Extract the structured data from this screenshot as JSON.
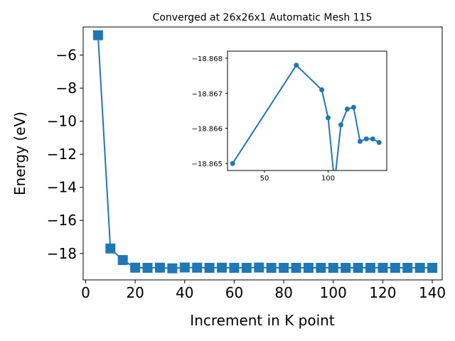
{
  "chart_data": [
    {
      "type": "line",
      "title": "Converged at 26x26x1 Automatic Mesh 115",
      "xlabel": "Increment in K point",
      "ylabel": "Energy (eV)",
      "xlim": [
        -1,
        144
      ],
      "ylim": [
        -19.6,
        -4.3
      ],
      "xticks": [
        0,
        20,
        40,
        60,
        80,
        100,
        120,
        140
      ],
      "yticks": [
        -18,
        -16,
        -14,
        -12,
        -10,
        -8,
        -6
      ],
      "xtick_labels": [
        "0",
        "20",
        "40",
        "60",
        "80",
        "100",
        "120",
        "140"
      ],
      "ytick_labels": [
        "−18",
        "−16",
        "−14",
        "−12",
        "−10",
        "−8",
        "−6"
      ],
      "grid": false,
      "marker": "square",
      "color": "#1f77b4",
      "series": [
        {
          "x": [
            5,
            10,
            15,
            20,
            25,
            30,
            35,
            40,
            45,
            50,
            55,
            60,
            65,
            70,
            75,
            80,
            85,
            90,
            95,
            100,
            105,
            110,
            115,
            120,
            125,
            130,
            135,
            140
          ],
          "y": [
            -4.8,
            -17.7,
            -18.4,
            -18.86,
            -18.87,
            -18.86,
            -18.9,
            -18.85,
            -18.86,
            -18.87,
            -18.86,
            -18.87,
            -18.87,
            -18.85,
            -18.87,
            -18.87,
            -18.87,
            -18.87,
            -18.87,
            -18.87,
            -18.87,
            -18.87,
            -18.87,
            -18.87,
            -18.87,
            -18.87,
            -18.87,
            -18.87
          ]
        }
      ]
    },
    {
      "type": "line",
      "title": "",
      "xlabel": "",
      "ylabel": "",
      "xlim": [
        21,
        146
      ],
      "ylim": [
        -18.8648,
        -18.8682
      ],
      "xticks": [
        50,
        100
      ],
      "yticks": [
        -18.868,
        -18.867,
        -18.866,
        -18.865
      ],
      "xtick_labels": [
        "50",
        "100"
      ],
      "ytick_labels": [
        "−18.868",
        "−18.867",
        "−18.866",
        "−18.865"
      ],
      "grid": false,
      "marker": "circle",
      "color": "#1f77b4",
      "series": [
        {
          "x": [
            25,
            75,
            95,
            100,
            105,
            110,
            115,
            120,
            125,
            130,
            135,
            140
          ],
          "y": [
            -18.865,
            -18.8678,
            -18.8671,
            -18.8663,
            -18.86445,
            -18.8661,
            -18.86655,
            -18.8666,
            -18.86563,
            -18.8657,
            -18.8657,
            -18.8656
          ]
        }
      ]
    }
  ]
}
